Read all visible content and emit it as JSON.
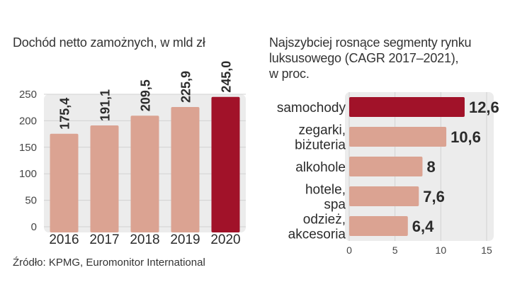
{
  "left_title": "Dochód netto zamożnych, w mld zł",
  "right_title": [
    "Najszybciej rosnące segmenty rynku",
    "luksusowego (CAGR 2017–2021),",
    "w proc."
  ],
  "source": "Źródło: KPMG, Euromonitor International",
  "colors": {
    "bar": "#dba392",
    "highlight": "#a11229",
    "panel": "#ececec",
    "text": "#2b2b2b"
  },
  "chart_data": [
    {
      "type": "bar",
      "title": "Dochód netto zamożnych, w mld zł",
      "categories": [
        "2016",
        "2017",
        "2018",
        "2019",
        "2020"
      ],
      "values": [
        175.4,
        191.1,
        209.5,
        225.9,
        245.0
      ],
      "value_labels": [
        "175,4",
        "191,1",
        "209,5",
        "225,9",
        "245,0"
      ],
      "highlight_index": 4,
      "ylim": [
        0,
        250
      ],
      "yticks": [
        0,
        50,
        100,
        150,
        200,
        250
      ]
    },
    {
      "type": "bar",
      "orientation": "horizontal",
      "title": "Najszybciej rosnące segmenty rynku luksusowego (CAGR 2017–2021), w proc.",
      "categories": [
        [
          "samochody"
        ],
        [
          "zegarki,",
          "biżuteria"
        ],
        [
          "alkohole"
        ],
        [
          "hotele,",
          "spa"
        ],
        [
          "odzież,",
          "akcesoria"
        ]
      ],
      "values": [
        12.6,
        10.6,
        8,
        7.6,
        6.4
      ],
      "value_labels": [
        "12,6",
        "10,6",
        "8",
        "7,6",
        "6,4"
      ],
      "highlight_index": 0,
      "xlim": [
        0,
        15
      ],
      "xticks": [
        0,
        5,
        10,
        15
      ]
    }
  ]
}
